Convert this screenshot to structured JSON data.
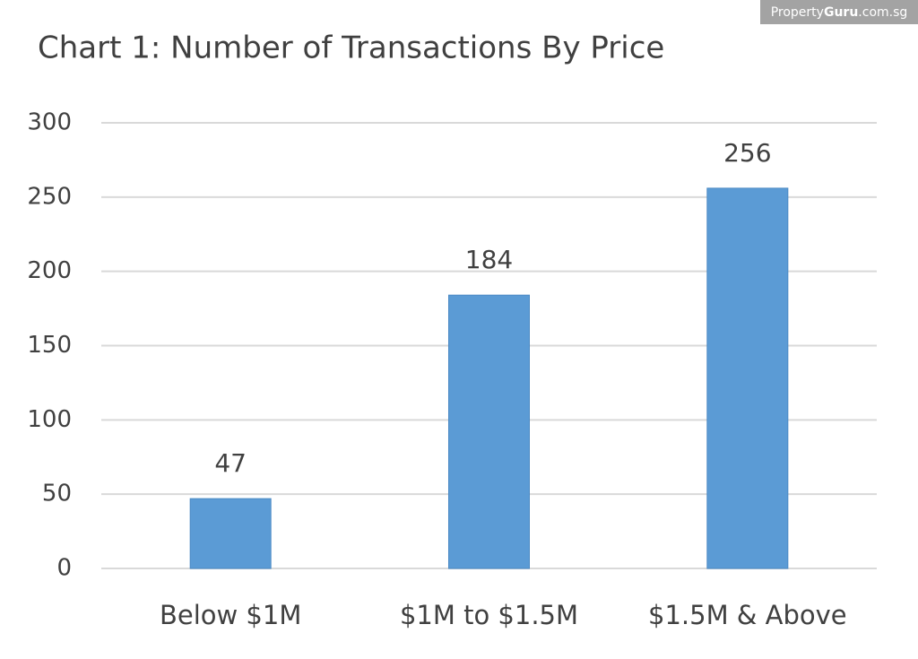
{
  "chart_data": {
    "type": "bar",
    "title": "Chart 1: Number of Transactions By Price",
    "watermark": [
      "Property",
      "Guru",
      ".com.sg"
    ],
    "categories": [
      "Below $1M",
      "$1M to $1.5M",
      "$1.5M & Above"
    ],
    "values": [
      47,
      184,
      256
    ],
    "color": "#5b9bd5",
    "ylim": [
      0,
      300
    ],
    "yticks": [
      0,
      50,
      100,
      150,
      200,
      250,
      300
    ],
    "grid": true
  }
}
